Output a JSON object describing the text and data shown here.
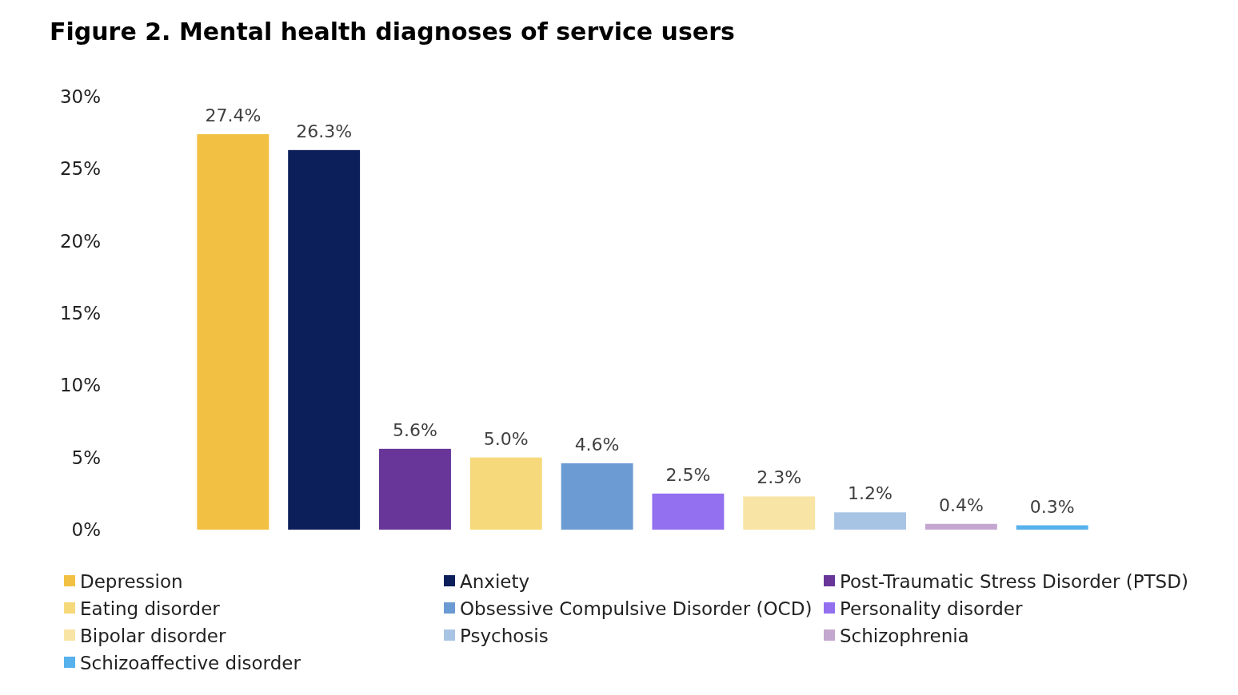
{
  "chart_data": {
    "type": "bar",
    "title": "Figure 2. Mental health diagnoses of service users",
    "categories": [
      null,
      null,
      null,
      null,
      null,
      null,
      null,
      null,
      null,
      null
    ],
    "series": [
      {
        "name": "Depression",
        "color": "#f2c143",
        "values": [
          27.4,
          null,
          null,
          null,
          null,
          null,
          null,
          null,
          null,
          null
        ],
        "value_labels": [
          "27.4%",
          null,
          null,
          null,
          null,
          null,
          null,
          null,
          null,
          null
        ]
      },
      {
        "name": "Anxiety",
        "color": "#0c1f5a",
        "values": [
          null,
          26.3,
          null,
          null,
          null,
          null,
          null,
          null,
          null,
          null
        ],
        "value_labels": [
          null,
          "26.3%",
          null,
          null,
          null,
          null,
          null,
          null,
          null,
          null
        ]
      },
      {
        "name": "Post-Traumatic Stress Disorder (PTSD)",
        "color": "#683699",
        "values": [
          null,
          null,
          5.6,
          null,
          null,
          null,
          null,
          null,
          null,
          null
        ],
        "value_labels": [
          null,
          null,
          "5.6%",
          null,
          null,
          null,
          null,
          null,
          null,
          null
        ]
      },
      {
        "name": "Eating disorder",
        "color": "#f6d97a",
        "values": [
          null,
          null,
          null,
          5.0,
          null,
          null,
          null,
          null,
          null,
          null
        ],
        "value_labels": [
          null,
          null,
          null,
          "5.0%",
          null,
          null,
          null,
          null,
          null,
          null
        ]
      },
      {
        "name": "Obsessive Compulsive Disorder (OCD)",
        "color": "#6b9bd2",
        "values": [
          null,
          null,
          null,
          null,
          4.6,
          null,
          null,
          null,
          null,
          null
        ],
        "value_labels": [
          null,
          null,
          null,
          null,
          "4.6%",
          null,
          null,
          null,
          null,
          null
        ]
      },
      {
        "name": "Personality disorder",
        "color": "#9370f0",
        "values": [
          null,
          null,
          null,
          null,
          null,
          2.5,
          null,
          null,
          null,
          null
        ],
        "value_labels": [
          null,
          null,
          null,
          null,
          null,
          "2.5%",
          null,
          null,
          null,
          null
        ]
      },
      {
        "name": "Bipolar disorder",
        "color": "#f8e4a4",
        "values": [
          null,
          null,
          null,
          null,
          null,
          null,
          2.3,
          null,
          null,
          null
        ],
        "value_labels": [
          null,
          null,
          null,
          null,
          null,
          null,
          "2.3%",
          null,
          null,
          null
        ]
      },
      {
        "name": "Psychosis",
        "color": "#a8c4e4",
        "values": [
          null,
          null,
          null,
          null,
          null,
          null,
          null,
          1.2,
          null,
          null
        ],
        "value_labels": [
          null,
          null,
          null,
          null,
          null,
          null,
          null,
          "1.2%",
          null,
          null
        ]
      },
      {
        "name": "Schizophrenia",
        "color": "#c4a7cf",
        "values": [
          null,
          null,
          null,
          null,
          null,
          null,
          null,
          null,
          0.4,
          null
        ],
        "value_labels": [
          null,
          null,
          null,
          null,
          null,
          null,
          null,
          null,
          "0.4%",
          null
        ]
      },
      {
        "name": "Schizoaffective disorder",
        "color": "#56b1ec",
        "values": [
          null,
          null,
          null,
          null,
          null,
          null,
          null,
          null,
          null,
          0.3
        ],
        "value_labels": [
          null,
          null,
          null,
          null,
          null,
          null,
          null,
          null,
          null,
          "0.3%"
        ]
      }
    ],
    "ylim": [
      0,
      30
    ],
    "yticks": [
      {
        "value": 0,
        "label": "0%"
      },
      {
        "value": 5,
        "label": "5%"
      },
      {
        "value": 10,
        "label": "10%"
      },
      {
        "value": 15,
        "label": "15%"
      },
      {
        "value": 20,
        "label": "20%"
      },
      {
        "value": 25,
        "label": "25%"
      },
      {
        "value": 30,
        "label": "30%"
      }
    ],
    "stacked": true,
    "tick_labels": "y",
    "legend": "bottom"
  }
}
